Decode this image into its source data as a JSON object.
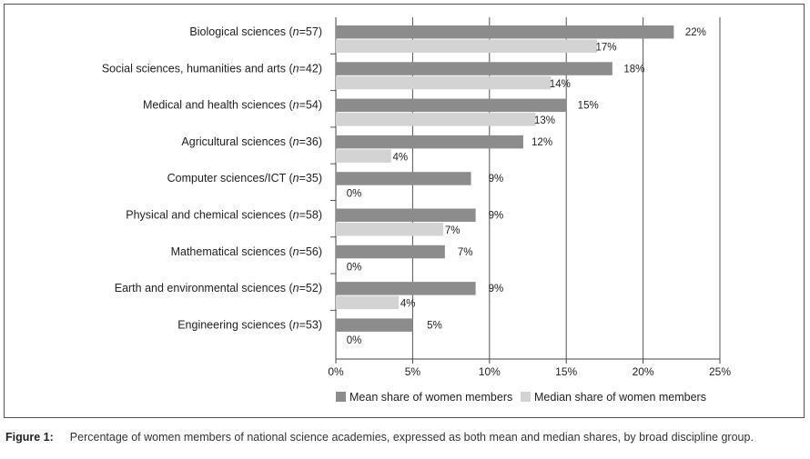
{
  "chart_data": {
    "type": "bar",
    "orientation": "horizontal",
    "categories": [
      {
        "name": "Biological sciences",
        "n": "57"
      },
      {
        "name": "Social sciences, humanities and arts",
        "n": "42"
      },
      {
        "name": "Medical and health sciences",
        "n": "54"
      },
      {
        "name": "Agricultural sciences",
        "n": "36"
      },
      {
        "name": "Computer sciences/ICT",
        "n": "35"
      },
      {
        "name": "Physical and chemical sciences",
        "n": "58"
      },
      {
        "name": "Mathematical sciences",
        "n": "56"
      },
      {
        "name": "Earth and environmental sciences",
        "n": "52"
      },
      {
        "name": "Engineering sciences",
        "n": "53"
      }
    ],
    "series": [
      {
        "name": "Mean share of women members",
        "color": "#8c8c8c",
        "values": [
          22,
          18,
          15,
          12,
          9,
          9,
          7,
          9,
          5
        ],
        "bar_values": [
          22,
          18,
          15,
          12.2,
          8.8,
          9.1,
          7.1,
          9.1,
          5
        ],
        "labels": [
          "22%",
          "18%",
          "15%",
          "12%",
          "9%",
          "9%",
          "7%",
          "9%",
          "5%"
        ]
      },
      {
        "name": "Median share of women members",
        "color": "#d3d3d3",
        "values": [
          17,
          14,
          13,
          4,
          0,
          7,
          0,
          4,
          0
        ],
        "bar_values": [
          17,
          14,
          13,
          3.6,
          0,
          7,
          0,
          4.1,
          0
        ],
        "labels": [
          "17%",
          "14%",
          "13%",
          "4%",
          "0%",
          "7%",
          "0%",
          "4%",
          "0%"
        ]
      }
    ],
    "xlim": [
      0,
      25
    ],
    "xticks": [
      0,
      5,
      10,
      15,
      20,
      25
    ],
    "xtick_labels": [
      "0%",
      "5%",
      "10%",
      "15%",
      "20%",
      "25%"
    ],
    "grid": true,
    "legend_position": "bottom"
  },
  "caption": {
    "figure_label": "Figure 1:",
    "text": "Percentage of women members of national science academies, expressed as both mean and median shares, by broad discipline group."
  }
}
